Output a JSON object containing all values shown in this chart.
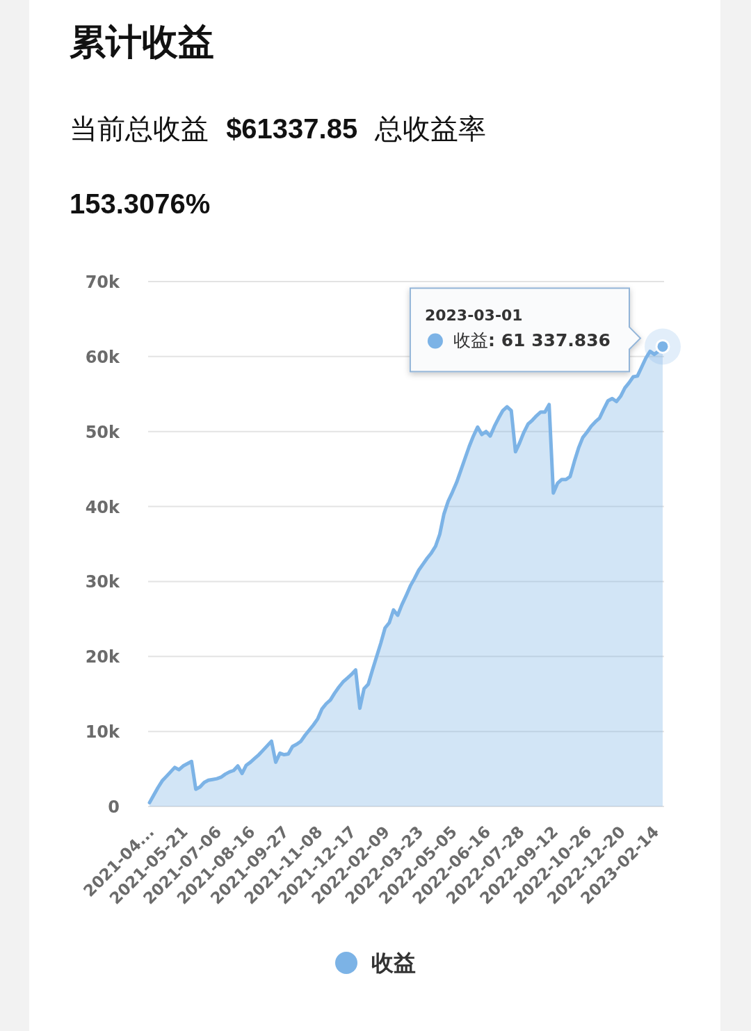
{
  "chart_data": {
    "type": "area",
    "title": "累计收益",
    "subtitle": "当前总收益 $61337.85 总收益率 153.3076%",
    "categories": [
      "2021-04...",
      null,
      null,
      null,
      null,
      null,
      null,
      null,
      "2021-05-21",
      null,
      null,
      null,
      null,
      null,
      null,
      null,
      "2021-07-06",
      null,
      null,
      null,
      null,
      null,
      null,
      null,
      "2021-08-16",
      null,
      null,
      null,
      null,
      null,
      null,
      null,
      "2021-09-27",
      null,
      null,
      null,
      null,
      null,
      null,
      null,
      "2021-11-08",
      null,
      null,
      null,
      null,
      null,
      null,
      null,
      "2021-12-17",
      null,
      null,
      null,
      null,
      null,
      null,
      null,
      "2022-02-09",
      null,
      null,
      null,
      null,
      null,
      null,
      null,
      "2022-03-23",
      null,
      null,
      null,
      null,
      null,
      null,
      null,
      "2022-05-05",
      null,
      null,
      null,
      null,
      null,
      null,
      null,
      "2022-06-16",
      null,
      null,
      null,
      null,
      null,
      null,
      null,
      "2022-07-28",
      null,
      null,
      null,
      null,
      null,
      null,
      null,
      "2022-09-12",
      null,
      null,
      null,
      null,
      null,
      null,
      null,
      "2022-10-26",
      null,
      null,
      null,
      null,
      null,
      null,
      null,
      "2022-12-20",
      null,
      null,
      null,
      null,
      null,
      null,
      null,
      "2023-02-14",
      null,
      null
    ],
    "series": [
      {
        "name": "收益",
        "color": "#7cb3e6",
        "values": [
          500,
          1500,
          2500,
          3400,
          4000,
          4600,
          5200,
          4900,
          5400,
          5700,
          6000,
          2300,
          2600,
          3200,
          3500,
          3600,
          3700,
          3900,
          4300,
          4600,
          4800,
          5400,
          4400,
          5500,
          5900,
          6400,
          6900,
          7500,
          8100,
          8700,
          5900,
          7100,
          6900,
          7000,
          8000,
          8300,
          8700,
          9500,
          10200,
          10900,
          11700,
          13000,
          13700,
          14200,
          15100,
          15900,
          16600,
          17100,
          17600,
          18200,
          13100,
          15700,
          16300,
          18200,
          20000,
          21800,
          23800,
          24500,
          26200,
          25500,
          26900,
          28100,
          29400,
          30400,
          31500,
          32300,
          33100,
          33800,
          34700,
          36300,
          39000,
          40700,
          41900,
          43200,
          44800,
          46400,
          48000,
          49400,
          50600,
          49600,
          50000,
          49400,
          50700,
          51800,
          52800,
          53300,
          52800,
          47300,
          48500,
          49900,
          51000,
          51500,
          52100,
          52600,
          52600,
          53600,
          41800,
          43100,
          43600,
          43600,
          44000,
          46000,
          47800,
          49200,
          49900,
          50700,
          51300,
          51800,
          53000,
          54100,
          54400,
          54000,
          54700,
          55800,
          56500,
          57300,
          57400,
          58600,
          59800,
          60700,
          60300,
          60700,
          61337.836
        ]
      }
    ],
    "ylim": [
      0,
      70000
    ],
    "yticks": [
      0,
      {
        "value": 10000,
        "label": "10k"
      },
      {
        "value": 20000,
        "label": "20k"
      },
      {
        "value": 30000,
        "label": "30k"
      },
      {
        "value": 40000,
        "label": "40k"
      },
      {
        "value": 50000,
        "label": "50k"
      },
      {
        "value": 60000,
        "label": "60k"
      },
      {
        "value": 70000,
        "label": "70k"
      }
    ],
    "grid": "y",
    "legend": "bottom",
    "annotations": [
      "2023-03-01\n收益: 61 337.836"
    ]
  }
}
